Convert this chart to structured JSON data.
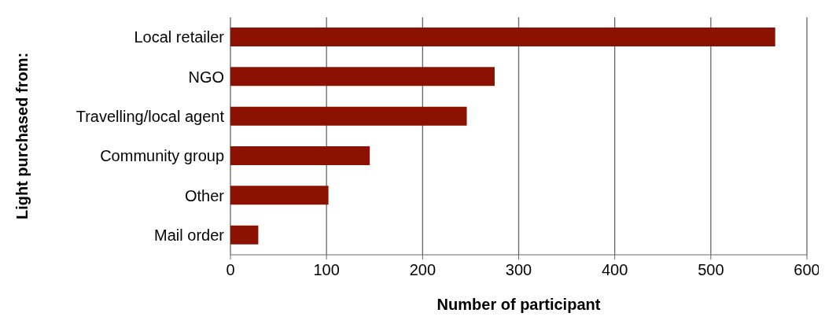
{
  "chart_data": {
    "type": "bar",
    "orientation": "horizontal",
    "xlabel": "Number of participant",
    "ylabel": "Light purchased from:",
    "categories": [
      "Local retailer",
      "NGO",
      "Travelling/local agent",
      "Community group",
      "Other",
      "Mail order"
    ],
    "values": [
      567,
      275,
      246,
      145,
      102,
      29
    ],
    "color": "#8b1200",
    "xlim": [
      0,
      600
    ],
    "xticks": [
      0,
      100,
      200,
      300,
      400,
      500,
      600
    ],
    "grid": "x"
  }
}
